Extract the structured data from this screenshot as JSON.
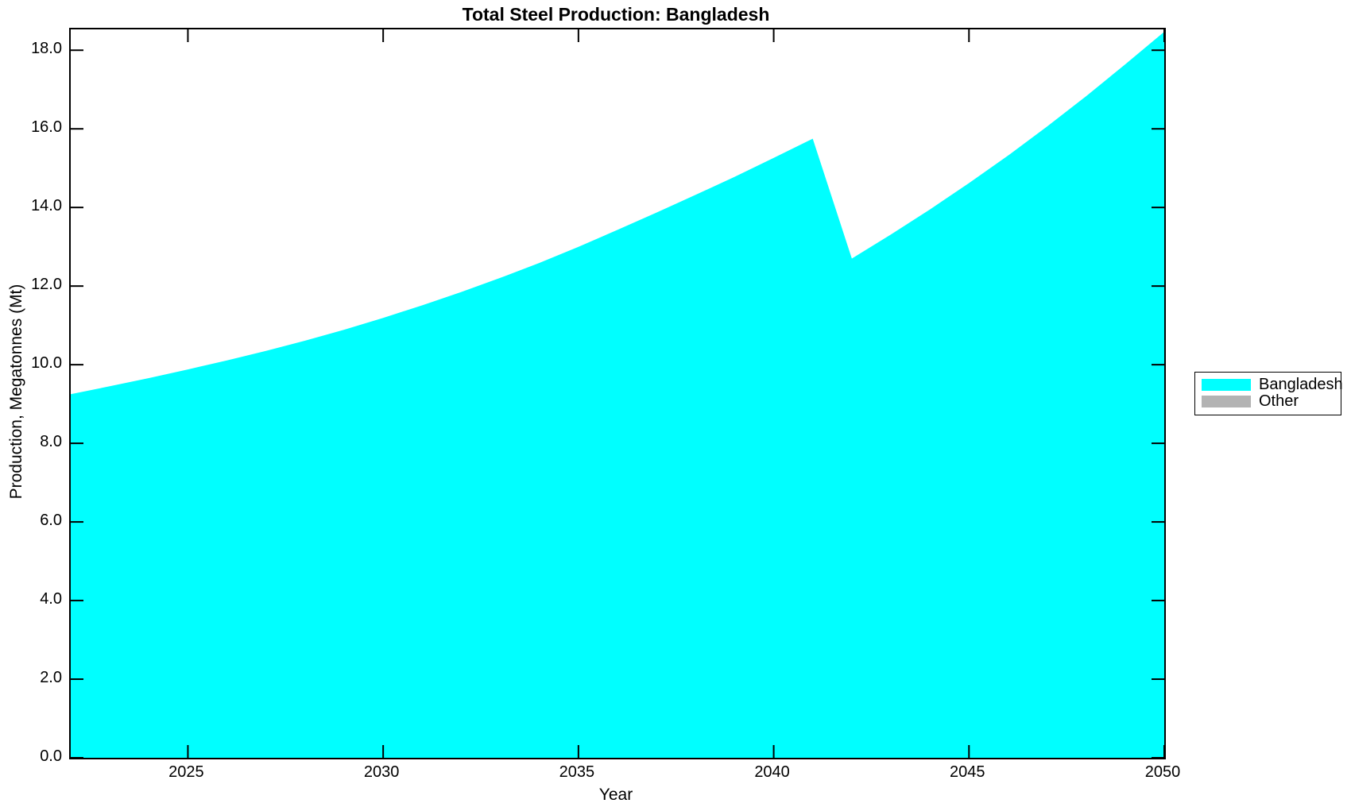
{
  "chart_data": {
    "type": "area",
    "title": "Total Steel Production: Bangladesh",
    "xlabel": "Year",
    "ylabel": "Production, Megatonnes (Mt)",
    "x": [
      2022,
      2023,
      2024,
      2025,
      2026,
      2027,
      2028,
      2029,
      2030,
      2031,
      2032,
      2033,
      2034,
      2035,
      2036,
      2037,
      2038,
      2039,
      2040,
      2041,
      2042,
      2043,
      2044,
      2045,
      2046,
      2047,
      2048,
      2049,
      2050
    ],
    "series": [
      {
        "name": "Bangladesh",
        "color": "#00FFFF",
        "values": [
          9.25,
          9.45,
          9.66,
          9.88,
          10.11,
          10.35,
          10.61,
          10.89,
          11.19,
          11.51,
          11.85,
          12.21,
          12.59,
          13.0,
          13.43,
          13.87,
          14.32,
          14.78,
          15.26,
          15.75,
          12.7,
          13.31,
          13.95,
          14.62,
          15.32,
          16.06,
          16.83,
          17.64,
          18.47
        ]
      },
      {
        "name": "Other",
        "color": "#B3B3B3",
        "values": [
          0,
          0,
          0,
          0,
          0,
          0,
          0,
          0,
          0,
          0,
          0,
          0,
          0,
          0,
          0,
          0,
          0,
          0,
          0,
          0,
          0,
          0,
          0,
          0,
          0,
          0,
          0,
          0,
          0
        ]
      }
    ],
    "xlim": [
      2022,
      2050
    ],
    "ylim": [
      0,
      18.53
    ],
    "xticks": [
      2025,
      2030,
      2035,
      2040,
      2045,
      2050
    ],
    "xtick_labels": [
      "2025",
      "2030",
      "2035",
      "2040",
      "2045",
      "2050"
    ],
    "yticks": [
      0,
      2,
      4,
      6,
      8,
      10,
      12,
      14,
      16,
      18
    ],
    "ytick_labels": [
      "0.0",
      "2.0",
      "4.0",
      "6.0",
      "8.0",
      "10.0",
      "12.0",
      "14.0",
      "16.0",
      "18.0"
    ],
    "grid": false,
    "legend_position": "right-outside",
    "legend": {
      "items": [
        {
          "label": "Bangladesh",
          "color": "#00FFFF"
        },
        {
          "label": "Other",
          "color": "#B3B3B3"
        }
      ]
    },
    "colors": {
      "axis": "#000000",
      "text": "#000000",
      "background": "#FFFFFF"
    }
  }
}
